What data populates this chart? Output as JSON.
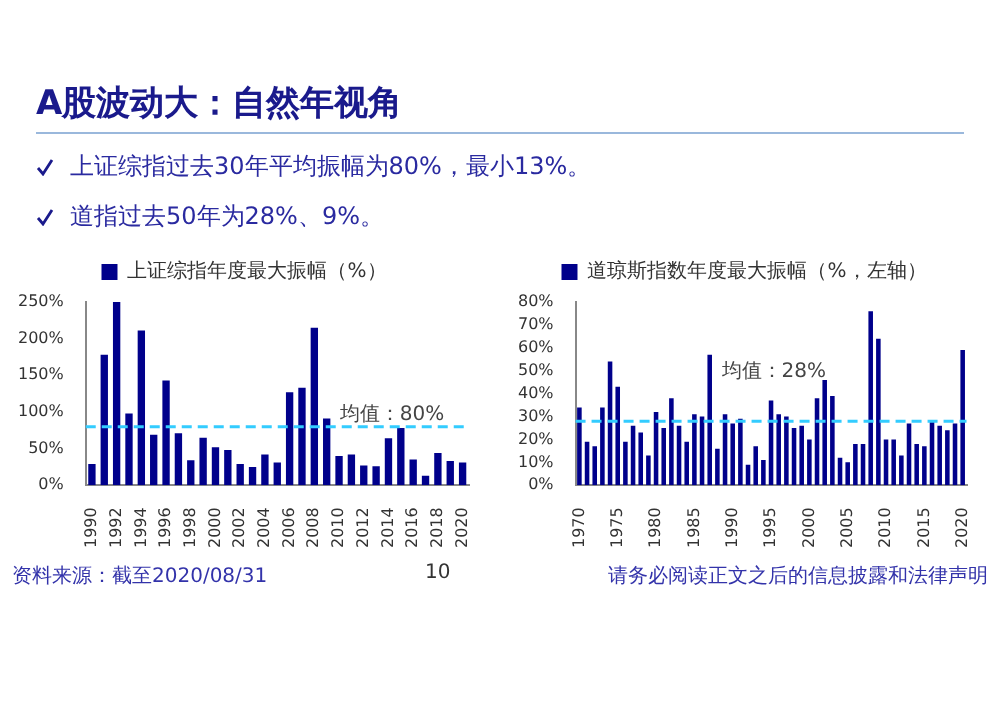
{
  "chart_data": [
    {
      "type": "other",
      "title": "A股波动大：自然年视角",
      "annotations": [
        "上证综指过去30年平均振幅为80%，最小13%。",
        "道指过去50年为28%、9%。"
      ]
    },
    {
      "type": "bar",
      "categories": [
        "1990",
        null,
        "1992",
        null,
        "1994",
        null,
        "1996",
        null,
        "1998",
        null,
        "2000",
        null,
        "2002",
        null,
        "2004",
        null,
        "2006",
        null,
        "2008",
        null,
        "2010",
        null,
        "2012",
        null,
        "2014",
        null,
        "2016",
        null,
        "2018",
        null,
        "2020"
      ],
      "series": [
        {
          "name": "上证综指年度最大振幅（%）",
          "color": "#00008b",
          "values": [
            29,
            178,
            250,
            98,
            211,
            69,
            143,
            71,
            34,
            65,
            52,
            48,
            29,
            25,
            42,
            31,
            127,
            133,
            215,
            91,
            40,
            42,
            27,
            26,
            64,
            78,
            35,
            13,
            44,
            33,
            31
          ]
        }
      ],
      "ylim": [
        0,
        250
      ],
      "yticks": [
        {
          "value": 0,
          "label": "0%"
        },
        {
          "value": 50,
          "label": "50%"
        },
        {
          "value": 100,
          "label": "100%"
        },
        {
          "value": 150,
          "label": "150%"
        },
        {
          "value": 200,
          "label": "200%"
        },
        {
          "value": 250,
          "label": "250%"
        }
      ],
      "ref_lines": [
        {
          "axis": "y",
          "value": 80,
          "label": "均值：80%",
          "color": "#33ccff",
          "line_style": "dashed"
        }
      ],
      "legend": "top",
      "grid": false
    },
    {
      "type": "bar",
      "categories": [
        "1970",
        null,
        null,
        null,
        null,
        "1975",
        null,
        null,
        null,
        null,
        "1980",
        null,
        null,
        null,
        null,
        "1985",
        null,
        null,
        null,
        null,
        "1990",
        null,
        null,
        null,
        null,
        "1995",
        null,
        null,
        null,
        null,
        "2000",
        null,
        null,
        null,
        null,
        "2005",
        null,
        null,
        null,
        null,
        "2010",
        null,
        null,
        null,
        null,
        "2015",
        null,
        null,
        null,
        null,
        "2020"
      ],
      "series": [
        {
          "name": "道琼斯指数年度最大振幅（%，左轴）",
          "color": "#00008b",
          "values": [
            34,
            19,
            17,
            34,
            54,
            43,
            19,
            26,
            23,
            13,
            32,
            25,
            38,
            26,
            19,
            31,
            30,
            57,
            16,
            31,
            27,
            29,
            9,
            17,
            11,
            37,
            31,
            30,
            25,
            26,
            20,
            38,
            46,
            39,
            12,
            10,
            18,
            18,
            76,
            64,
            20,
            20,
            13,
            27,
            18,
            17,
            28,
            26,
            24,
            27,
            59
          ]
        }
      ],
      "ylim": [
        0,
        80
      ],
      "yticks": [
        {
          "value": 0,
          "label": "0%"
        },
        {
          "value": 10,
          "label": "10%"
        },
        {
          "value": 20,
          "label": "20%"
        },
        {
          "value": 30,
          "label": "30%"
        },
        {
          "value": 40,
          "label": "40%"
        },
        {
          "value": 50,
          "label": "50%"
        },
        {
          "value": 60,
          "label": "60%"
        },
        {
          "value": 70,
          "label": "70%"
        },
        {
          "value": 80,
          "label": "80%"
        }
      ],
      "ref_lines": [
        {
          "axis": "y",
          "value": 28,
          "label": "均值：28%",
          "color": "#33ccff",
          "line_style": "dashed"
        }
      ],
      "legend": "top",
      "grid": false
    },
    {
      "type": "other",
      "annotations": [
        "资料来源：截至2020/08/31",
        "10",
        "请务必阅读正文之后的信息披露和法律声明"
      ]
    }
  ]
}
